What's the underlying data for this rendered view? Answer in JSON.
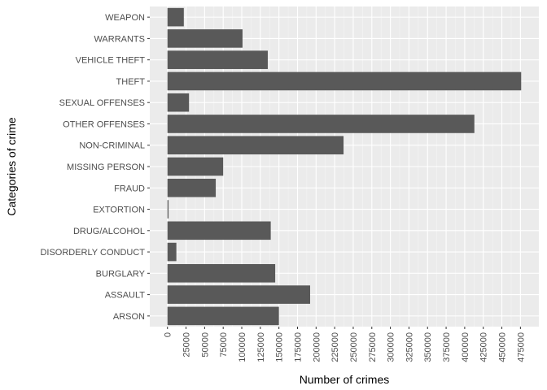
{
  "chart_data": {
    "type": "bar",
    "orientation": "horizontal",
    "title": "",
    "xlabel": "Number of crimes",
    "ylabel": "Categories of crime",
    "categories": [
      "ARSON",
      "ASSAULT",
      "BURGLARY",
      "DISORDERLY CONDUCT",
      "DRUG/ALCOHOL",
      "EXTORTION",
      "FRAUD",
      "MISSING PERSON",
      "NON-CRIMINAL",
      "OTHER OFFENSES",
      "SEXUAL OFFENSES",
      "THEFT",
      "VEHICLE THEFT",
      "WARRANTS",
      "WEAPON"
    ],
    "values": [
      150000,
      192000,
      145000,
      12000,
      139000,
      1500,
      65000,
      75000,
      237000,
      413000,
      29000,
      476000,
      135000,
      101000,
      22000
    ],
    "x_ticks": [
      "0",
      "25000",
      "50000",
      "75000",
      "100000",
      "125000",
      "150000",
      "175000",
      "200000",
      "225000",
      "250000",
      "275000",
      "300000",
      "325000",
      "350000",
      "375000",
      "400000",
      "425000",
      "450000",
      "475000"
    ],
    "xlim": [
      -23800,
      499800
    ],
    "grid": true,
    "colors": {
      "bar": "#595959",
      "panel": "#ebebeb",
      "grid_major": "#ffffff",
      "grid_minor": "#f5f5f5"
    }
  }
}
